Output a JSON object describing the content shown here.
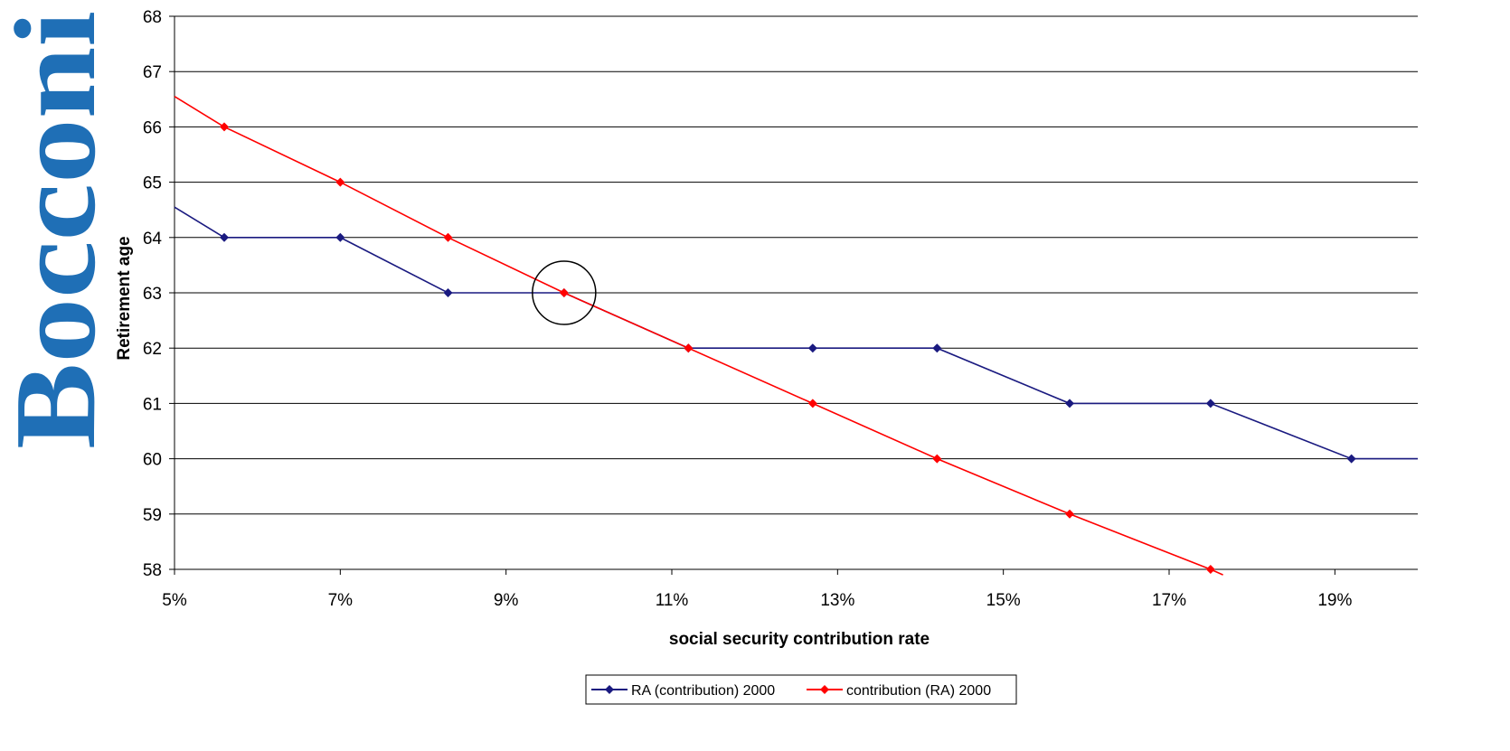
{
  "logo": {
    "text": "Bocconi",
    "color": "#1f6fb6"
  },
  "chart_data": {
    "type": "line",
    "title": "",
    "xlabel": "social security contribution rate",
    "ylabel": "Retirement age",
    "xlim": [
      0.05,
      0.2
    ],
    "ylim": [
      58,
      68
    ],
    "xticks": [
      0.05,
      0.07,
      0.09,
      0.11,
      0.13,
      0.15,
      0.17,
      0.19
    ],
    "xtick_labels": [
      "5%",
      "7%",
      "9%",
      "11%",
      "13%",
      "15%",
      "17%",
      "19%"
    ],
    "yticks": [
      58,
      59,
      60,
      61,
      62,
      63,
      64,
      65,
      66,
      67,
      68
    ],
    "ytick_labels": [
      "58",
      "59",
      "60",
      "61",
      "62",
      "63",
      "64",
      "65",
      "66",
      "67",
      "68"
    ],
    "grid": "horizontal",
    "legend_position": "bottom-center",
    "series": [
      {
        "name": "RA (contribution) 2000",
        "color": "#1a1a80",
        "marker": "diamond",
        "x": [
          0.056,
          0.07,
          0.083,
          0.097,
          0.112,
          0.127,
          0.142,
          0.158,
          0.175,
          0.192
        ],
        "y": [
          64,
          64,
          63,
          63,
          62,
          62,
          62,
          61,
          61,
          60
        ],
        "line_from_left_edge": 64.55,
        "line_to_right_edge": 60
      },
      {
        "name": "contribution (RA) 2000",
        "color": "#ff0000",
        "marker": "diamond",
        "x": [
          0.056,
          0.07,
          0.083,
          0.097,
          0.112,
          0.127,
          0.142,
          0.158,
          0.175
        ],
        "y": [
          66,
          65,
          64,
          63,
          62,
          61,
          60,
          59,
          58
        ],
        "line_from_left_edge": 66.55,
        "line_end": [
          0.1765,
          57.9
        ]
      }
    ],
    "annotations": [
      {
        "type": "circle",
        "x": 0.097,
        "y": 63
      }
    ]
  }
}
